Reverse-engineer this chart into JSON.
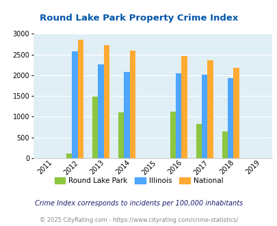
{
  "title": "Round Lake Park Property Crime Index",
  "years": [
    2011,
    2012,
    2013,
    2014,
    2015,
    2016,
    2017,
    2018,
    2019
  ],
  "data": {
    "Round Lake Park": {
      "2012": 120,
      "2013": 1490,
      "2014": 1110,
      "2016": 1120,
      "2017": 830,
      "2018": 650
    },
    "Illinois": {
      "2012": 2580,
      "2013": 2270,
      "2014": 2090,
      "2016": 2050,
      "2017": 2010,
      "2018": 1940
    },
    "National": {
      "2012": 2860,
      "2013": 2730,
      "2014": 2600,
      "2016": 2460,
      "2017": 2360,
      "2018": 2190
    }
  },
  "colors": {
    "Round Lake Park": "#8dc63f",
    "Illinois": "#4da6ff",
    "National": "#ffaa33"
  },
  "ylim": [
    0,
    3000
  ],
  "yticks": [
    0,
    500,
    1000,
    1500,
    2000,
    2500,
    3000
  ],
  "bg_color": "#e0eff5",
  "title_color": "#0055aa",
  "legend_labels": [
    "Round Lake Park",
    "Illinois",
    "National"
  ],
  "footer_line1": "Crime Index corresponds to incidents per 100,000 inhabitants",
  "footer_line2": "© 2025 CityRating.com - https://www.cityrating.com/crime-statistics/",
  "bar_width": 0.22
}
